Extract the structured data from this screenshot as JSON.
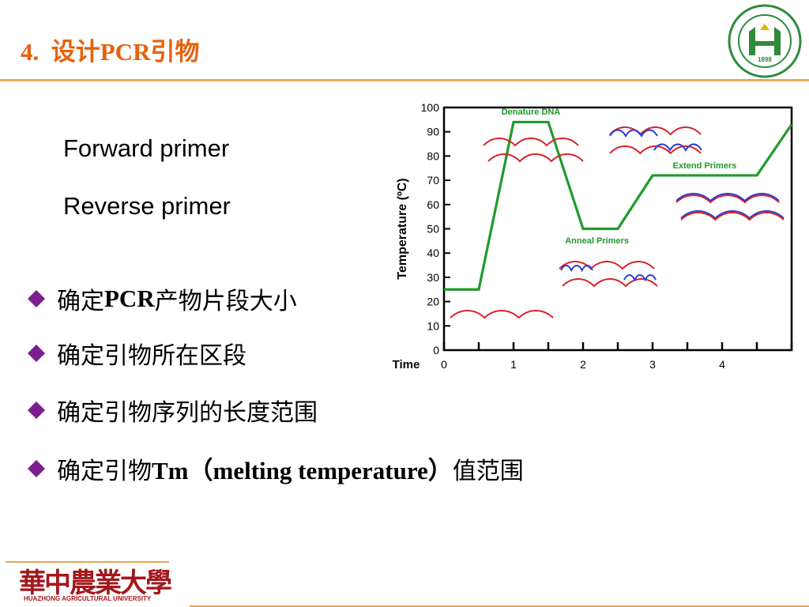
{
  "header": {
    "title_number": "4.",
    "title_text": "设计PCR引物",
    "logo_icon": "university-emblem-icon",
    "logo_year": "1898",
    "logo_name": "HUAZHONG AGRICULTURAL UNIVERSITY"
  },
  "primers": {
    "forward": "Forward primer",
    "reverse": "Reverse primer"
  },
  "bullets": [
    {
      "prefix": "确定",
      "bold": "PCR",
      "suffix": "产物片段大小"
    },
    {
      "prefix": "确定引物所在区段",
      "bold": "",
      "suffix": ""
    },
    {
      "prefix": "确定引物序列的长度范围",
      "bold": "",
      "suffix": ""
    },
    {
      "prefix": "确定引物",
      "bold": "Tm（melting temperature）",
      "suffix": "值范围"
    }
  ],
  "chart_data": {
    "type": "line",
    "ylabel": "Temperature (ºC)",
    "xlabel": "Time",
    "y_ticks": [
      "0",
      "10",
      "20",
      "30",
      "40",
      "50",
      "60",
      "70",
      "80",
      "90",
      "100"
    ],
    "x_ticks": [
      "0",
      "1",
      "2",
      "3",
      "4"
    ],
    "ylim": [
      0,
      100
    ],
    "xlim": [
      0,
      5
    ],
    "series": [
      {
        "x": [
          0,
          0.5,
          1.0,
          1.5,
          2.0,
          2.5,
          3.0,
          4.5,
          5.0
        ],
        "y": [
          25,
          25,
          94,
          94,
          50,
          50,
          72,
          72,
          93
        ]
      }
    ],
    "annotations": [
      {
        "text": "Denature DNA",
        "x": 1.25,
        "y": 97
      },
      {
        "text": "Anneal Primers",
        "x": 2.2,
        "y": 44
      },
      {
        "text": "Extend Primers",
        "x": 3.75,
        "y": 75
      }
    ],
    "colors": {
      "line": "#1f9a2b",
      "label": "#1f9a2b",
      "strand_red": "#d9232b",
      "strand_blue": "#2a3fd6"
    }
  },
  "footer": {
    "logo_cn": "華中農業大學",
    "logo_en": "HUAZHONG AGRICULTURAL UNIVERSITY"
  }
}
